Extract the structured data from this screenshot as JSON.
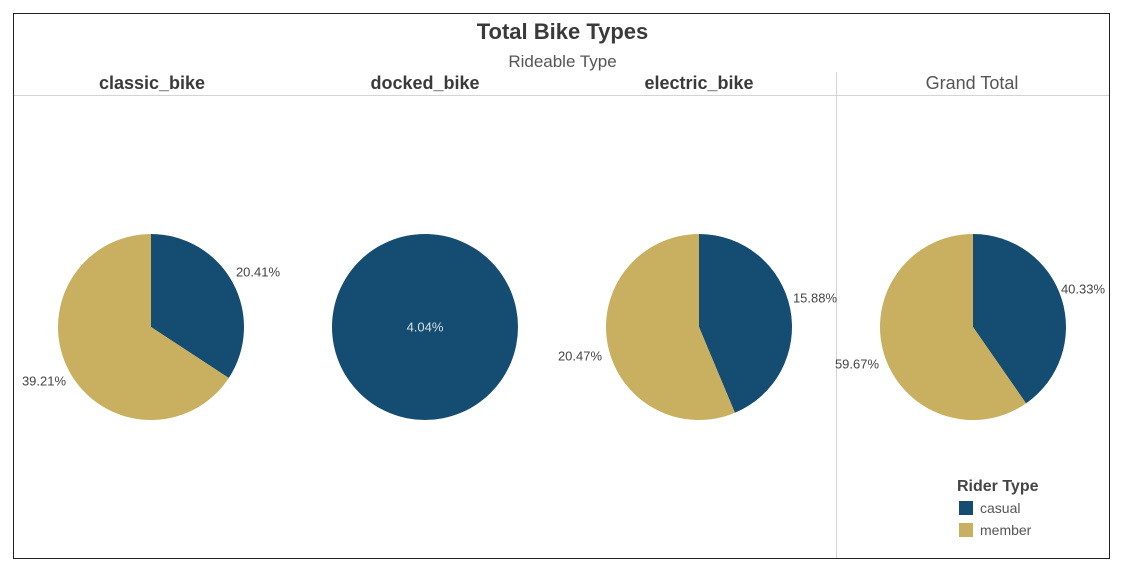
{
  "title": "Total Bike Types",
  "subtitle": "Rideable Type",
  "colors": {
    "casual": "#154c71",
    "member": "#c8b060"
  },
  "legend": {
    "title": "Rider Type",
    "items": [
      {
        "label": "casual",
        "color": "#154c71"
      },
      {
        "label": "member",
        "color": "#c8b060"
      }
    ]
  },
  "chart_data": {
    "type": "pie",
    "title": "Total Bike Types",
    "subtitle": "Rideable Type",
    "categories": [
      "classic_bike",
      "docked_bike",
      "electric_bike",
      "Grand Total"
    ],
    "series_names": [
      "casual",
      "member"
    ],
    "pies": [
      {
        "category": "classic_bike",
        "slices": [
          {
            "rider_type": "casual",
            "value": 20.41,
            "label": "20.41%"
          },
          {
            "rider_type": "member",
            "value": 39.21,
            "label": "39.21%"
          }
        ]
      },
      {
        "category": "docked_bike",
        "slices": [
          {
            "rider_type": "casual",
            "value": 4.04,
            "label": "4.04%"
          }
        ]
      },
      {
        "category": "electric_bike",
        "slices": [
          {
            "rider_type": "casual",
            "value": 15.88,
            "label": "15.88%"
          },
          {
            "rider_type": "member",
            "value": 20.47,
            "label": "20.47%"
          }
        ]
      },
      {
        "category": "Grand Total",
        "slices": [
          {
            "rider_type": "casual",
            "value": 40.33,
            "label": "40.33%"
          },
          {
            "rider_type": "member",
            "value": 59.67,
            "label": "59.67%"
          }
        ]
      }
    ],
    "legend_title": "Rider Type",
    "legend_position": "bottom-right"
  }
}
